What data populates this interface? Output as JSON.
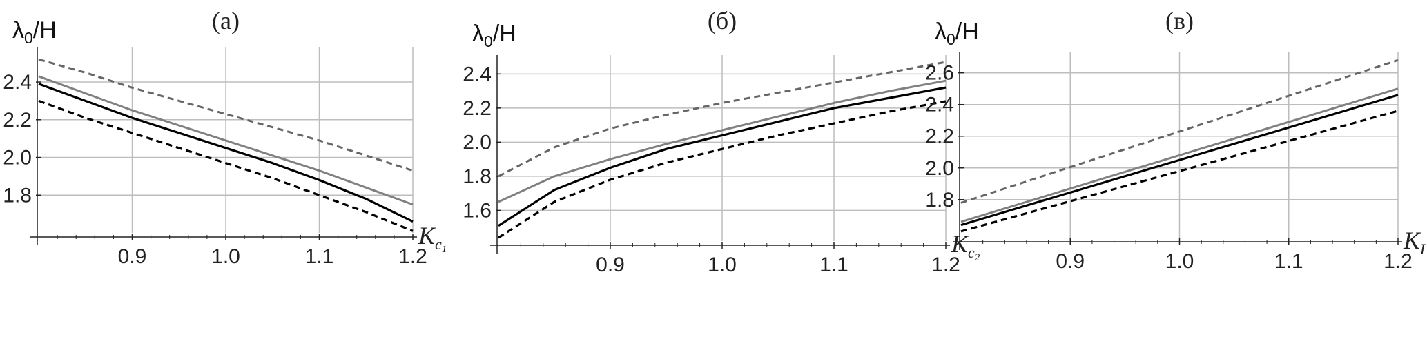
{
  "chart_data": [
    {
      "type": "line",
      "title": "(а)",
      "ylabel": "λ0/H",
      "xlabel_main": "K",
      "xlabel_sub": "c",
      "xlabel_subsub": "1",
      "xlim": [
        0.8,
        1.2
      ],
      "ylim": [
        1.6,
        2.55
      ],
      "xticks": [
        0.9,
        1.0,
        1.1,
        1.2
      ],
      "xtick_labels": [
        "0.9",
        "1.0",
        "1.1",
        "1.2"
      ],
      "yticks": [
        1.8,
        2.0,
        2.2,
        2.4
      ],
      "ytick_labels": [
        "1.8",
        "2.0",
        "2.2",
        "2.4"
      ],
      "grid": true,
      "series": [
        {
          "style": "dashed",
          "color": "#666666",
          "x": [
            0.8,
            0.85,
            0.9,
            0.95,
            1.0,
            1.05,
            1.1,
            1.15,
            1.2
          ],
          "y": [
            2.52,
            2.45,
            2.37,
            2.3,
            2.23,
            2.16,
            2.09,
            2.01,
            1.93
          ]
        },
        {
          "style": "solid",
          "color": "#808080",
          "x": [
            0.8,
            0.85,
            0.9,
            0.95,
            1.0,
            1.05,
            1.1,
            1.15,
            1.2
          ],
          "y": [
            2.43,
            2.34,
            2.25,
            2.17,
            2.09,
            2.01,
            1.93,
            1.84,
            1.75
          ]
        },
        {
          "style": "solid",
          "color": "#000000",
          "x": [
            0.8,
            0.85,
            0.9,
            0.95,
            1.0,
            1.05,
            1.1,
            1.15,
            1.2
          ],
          "y": [
            2.39,
            2.3,
            2.21,
            2.13,
            2.05,
            1.97,
            1.88,
            1.78,
            1.66
          ]
        },
        {
          "style": "dashed",
          "color": "#000000",
          "x": [
            0.8,
            0.85,
            0.9,
            0.95,
            1.0,
            1.05,
            1.1,
            1.15,
            1.2
          ],
          "y": [
            2.3,
            2.21,
            2.13,
            2.05,
            1.97,
            1.89,
            1.8,
            1.71,
            1.61
          ]
        }
      ]
    },
    {
      "type": "line",
      "title": "(б)",
      "ylabel": "λ0/H",
      "xlabel_main": "K",
      "xlabel_sub": "c",
      "xlabel_subsub": "2",
      "xlim": [
        0.8,
        1.2
      ],
      "ylim": [
        1.42,
        2.47
      ],
      "xticks": [
        0.9,
        1.0,
        1.1,
        1.2
      ],
      "xtick_labels": [
        "0.9",
        "1.0",
        "1.1",
        "1.2"
      ],
      "yticks": [
        1.6,
        1.8,
        2.0,
        2.2,
        2.4
      ],
      "ytick_labels": [
        "1.6",
        "1.8",
        "2.0",
        "2.2",
        "2.4"
      ],
      "grid": true,
      "series": [
        {
          "style": "dashed",
          "color": "#666666",
          "x": [
            0.8,
            0.85,
            0.9,
            0.95,
            1.0,
            1.05,
            1.1,
            1.15,
            1.2
          ],
          "y": [
            1.8,
            1.97,
            2.08,
            2.16,
            2.23,
            2.29,
            2.35,
            2.41,
            2.47
          ]
        },
        {
          "style": "solid",
          "color": "#808080",
          "x": [
            0.8,
            0.85,
            0.9,
            0.95,
            1.0,
            1.05,
            1.1,
            1.15,
            1.2
          ],
          "y": [
            1.65,
            1.8,
            1.9,
            1.99,
            2.07,
            2.15,
            2.23,
            2.3,
            2.36
          ]
        },
        {
          "style": "solid",
          "color": "#000000",
          "x": [
            0.8,
            0.85,
            0.9,
            0.95,
            1.0,
            1.05,
            1.1,
            1.15,
            1.2
          ],
          "y": [
            1.51,
            1.72,
            1.85,
            1.96,
            2.04,
            2.12,
            2.2,
            2.26,
            2.32
          ]
        },
        {
          "style": "dashed",
          "color": "#000000",
          "x": [
            0.8,
            0.85,
            0.9,
            0.95,
            1.0,
            1.05,
            1.1,
            1.15,
            1.2
          ],
          "y": [
            1.44,
            1.65,
            1.78,
            1.88,
            1.96,
            2.04,
            2.11,
            2.18,
            2.24
          ]
        }
      ]
    },
    {
      "type": "line",
      "title": "(в)",
      "ylabel": "λ0/H",
      "xlabel_main": "K",
      "xlabel_sub": "H",
      "xlabel_subsub": "",
      "xlim": [
        0.8,
        1.2
      ],
      "ylim": [
        1.56,
        2.69
      ],
      "xticks": [
        0.9,
        1.0,
        1.1,
        1.2
      ],
      "xtick_labels": [
        "0.9",
        "1.0",
        "1.1",
        "1.2"
      ],
      "yticks": [
        1.8,
        2.0,
        2.2,
        2.4,
        2.6
      ],
      "ytick_labels": [
        "1.8",
        "2.0",
        "2.2",
        "2.4",
        "2.6"
      ],
      "grid": true,
      "series": [
        {
          "style": "dashed",
          "color": "#666666",
          "x": [
            0.8,
            1.2
          ],
          "y": [
            1.78,
            2.68
          ]
        },
        {
          "style": "solid",
          "color": "#808080",
          "x": [
            0.8,
            1.2
          ],
          "y": [
            1.66,
            2.5
          ]
        },
        {
          "style": "solid",
          "color": "#000000",
          "x": [
            0.8,
            1.2
          ],
          "y": [
            1.64,
            2.46
          ]
        },
        {
          "style": "dashed",
          "color": "#000000",
          "x": [
            0.8,
            1.2
          ],
          "y": [
            1.6,
            2.36
          ]
        }
      ]
    }
  ]
}
